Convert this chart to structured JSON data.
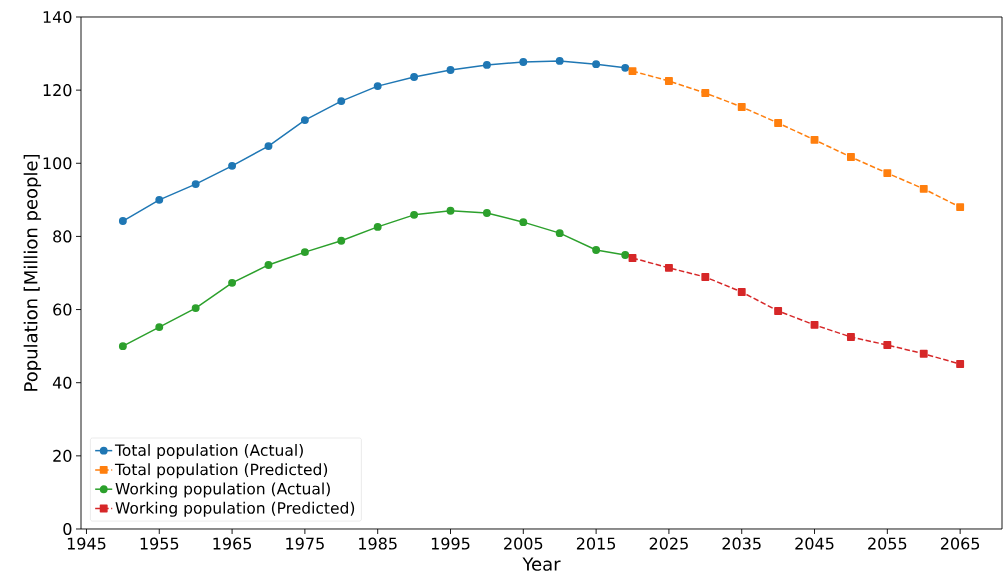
{
  "chart_data": {
    "type": "line",
    "xlabel": "Year",
    "ylabel": "Population [Million people]",
    "xlim": [
      1944.25,
      2070.75
    ],
    "ylim": [
      0,
      140
    ],
    "xticks": [
      1945,
      1955,
      1965,
      1975,
      1985,
      1995,
      2005,
      2015,
      2025,
      2035,
      2045,
      2055,
      2065
    ],
    "yticks": [
      0,
      20,
      40,
      60,
      80,
      100,
      120,
      140
    ],
    "legend": "bottom left",
    "grid": false,
    "series": [
      {
        "name": "Total population (Actual)",
        "color": "#1f77b4",
        "marker": "circle",
        "line_style": "solid",
        "x": [
          1950,
          1955,
          1960,
          1965,
          1970,
          1975,
          1980,
          1985,
          1990,
          1995,
          2000,
          2005,
          2010,
          2015,
          2019
        ],
        "values": [
          84.2,
          90.0,
          94.3,
          99.3,
          104.7,
          111.8,
          117.0,
          121.1,
          123.6,
          125.5,
          126.9,
          127.7,
          128.0,
          127.1,
          126.1
        ]
      },
      {
        "name": "Total population (Predicted)",
        "color": "#ff7f0e",
        "marker": "square",
        "line_style": "dashed",
        "x": [
          2020,
          2025,
          2030,
          2035,
          2040,
          2045,
          2050,
          2055,
          2060,
          2065
        ],
        "values": [
          125.2,
          122.5,
          119.2,
          115.4,
          111.0,
          106.4,
          101.7,
          97.3,
          93.0,
          88.0
        ]
      },
      {
        "name": "Working population (Actual)",
        "color": "#2ca02c",
        "marker": "circle",
        "line_style": "solid",
        "x": [
          1950,
          1955,
          1960,
          1965,
          1970,
          1975,
          1980,
          1985,
          1990,
          1995,
          2000,
          2005,
          2010,
          2015,
          2019
        ],
        "values": [
          50.0,
          55.2,
          60.4,
          67.3,
          72.2,
          75.7,
          78.8,
          82.6,
          85.9,
          87.0,
          86.4,
          83.9,
          80.9,
          76.3,
          74.9
        ]
      },
      {
        "name": "Working population (Predicted)",
        "color": "#d62728",
        "marker": "square",
        "line_style": "dashed",
        "x": [
          2020,
          2025,
          2030,
          2035,
          2040,
          2045,
          2050,
          2055,
          2060,
          2065
        ],
        "values": [
          74.1,
          71.4,
          68.9,
          64.8,
          59.6,
          55.8,
          52.5,
          50.3,
          47.9,
          45.1
        ]
      }
    ]
  }
}
